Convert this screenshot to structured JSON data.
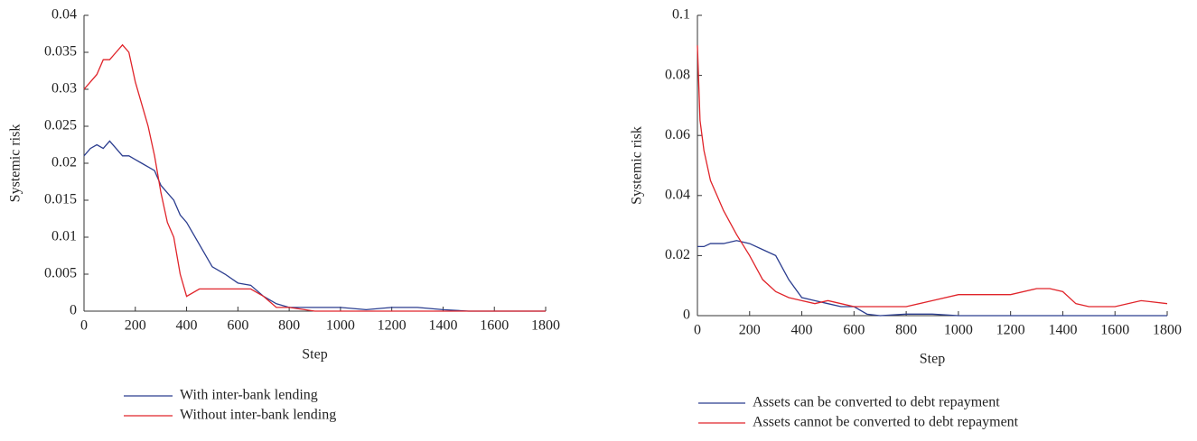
{
  "chart_data": [
    {
      "type": "line",
      "xlabel": "Step",
      "ylabel": "Systemic risk",
      "xlim": [
        0,
        1800
      ],
      "xticks": [
        0,
        200,
        400,
        600,
        800,
        1000,
        1200,
        1400,
        1600,
        1800
      ],
      "ylim": [
        0,
        0.04
      ],
      "yticks": [
        0,
        0.005,
        0.01,
        0.015,
        0.02,
        0.025,
        0.03,
        0.035,
        0.04
      ],
      "x": [
        0,
        25,
        50,
        75,
        100,
        125,
        150,
        175,
        200,
        225,
        250,
        275,
        300,
        325,
        350,
        375,
        400,
        450,
        500,
        550,
        600,
        650,
        700,
        750,
        800,
        900,
        1000,
        1100,
        1200,
        1300,
        1400,
        1500,
        1600,
        1700,
        1800
      ],
      "series": [
        {
          "name": "With inter-bank lending",
          "color": "#2b3d8f",
          "values": [
            0.021,
            0.022,
            0.0225,
            0.022,
            0.023,
            0.022,
            0.021,
            0.021,
            0.0205,
            0.02,
            0.0195,
            0.019,
            0.017,
            0.016,
            0.015,
            0.013,
            0.012,
            0.009,
            0.006,
            0.005,
            0.0038,
            0.0035,
            0.002,
            0.001,
            0.0005,
            0.0005,
            0.0005,
            0.0002,
            0.0005,
            0.0005,
            0.0002,
            0,
            0,
            0,
            0
          ]
        },
        {
          "name": "Without inter-bank lending",
          "color": "#e0242a",
          "values": [
            0.03,
            0.031,
            0.032,
            0.034,
            0.034,
            0.035,
            0.036,
            0.035,
            0.031,
            0.028,
            0.025,
            0.021,
            0.016,
            0.012,
            0.01,
            0.005,
            0.002,
            0.003,
            0.003,
            0.003,
            0.003,
            0.003,
            0.002,
            0.0005,
            0.0005,
            0,
            0,
            0,
            0,
            0,
            0,
            0,
            0,
            0,
            0
          ]
        }
      ]
    },
    {
      "type": "line",
      "xlabel": "Step",
      "ylabel": "Systemic risk",
      "xlim": [
        0,
        1800
      ],
      "xticks": [
        0,
        200,
        400,
        600,
        800,
        1000,
        1200,
        1400,
        1600,
        1800
      ],
      "ylim": [
        0,
        0.1
      ],
      "yticks": [
        0,
        0.02,
        0.04,
        0.06,
        0.08,
        0.1
      ],
      "x": [
        0,
        10,
        25,
        50,
        75,
        100,
        150,
        200,
        250,
        300,
        350,
        400,
        450,
        500,
        550,
        600,
        650,
        700,
        800,
        900,
        1000,
        1100,
        1200,
        1300,
        1350,
        1400,
        1450,
        1500,
        1600,
        1700,
        1800
      ],
      "series": [
        {
          "name": "Assets can be converted to debt repayment",
          "color": "#2b3d8f",
          "values": [
            0.023,
            0.023,
            0.023,
            0.024,
            0.024,
            0.024,
            0.025,
            0.024,
            0.022,
            0.02,
            0.012,
            0.006,
            0.005,
            0.004,
            0.003,
            0.003,
            0.0005,
            0,
            0.0005,
            0.0005,
            0,
            0,
            0,
            0,
            0,
            0,
            0,
            0,
            0,
            0,
            0
          ]
        },
        {
          "name": "Assets cannot be converted to debt repayment",
          "color": "#e0242a",
          "values": [
            0.09,
            0.065,
            0.055,
            0.045,
            0.04,
            0.035,
            0.027,
            0.02,
            0.012,
            0.008,
            0.006,
            0.005,
            0.004,
            0.005,
            0.004,
            0.003,
            0.003,
            0.003,
            0.003,
            0.005,
            0.007,
            0.007,
            0.007,
            0.009,
            0.009,
            0.008,
            0.004,
            0.003,
            0.003,
            0.005,
            0.004
          ]
        }
      ]
    }
  ]
}
